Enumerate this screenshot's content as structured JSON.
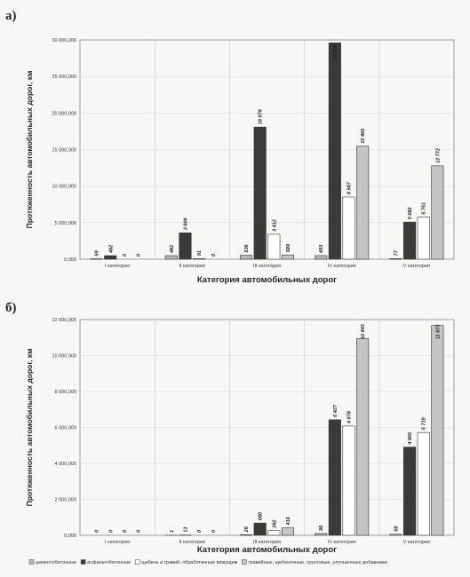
{
  "legend": [
    {
      "label": "цементобетонные",
      "color": "#b8b8b8"
    },
    {
      "label": "асфальтобетонные",
      "color": "#3a3a3a"
    },
    {
      "label": "щебень и гравий, обработанные вяжущим",
      "color": "#ffffff"
    },
    {
      "label": "гравийные, щебеночные, грунтовые, улучшенные добавками",
      "color": "#c4c4c4"
    }
  ],
  "chart_data": [
    {
      "type": "bar",
      "panel": "а)",
      "categories": [
        "I категория",
        "II категория",
        "III категория",
        "IV категория",
        "V категория"
      ],
      "xlabel": "Категория автомобильных дорог",
      "ylabel": "Протяженность автомобильных дорог, км",
      "ylim": [
        0,
        30000000
      ],
      "yticks": [
        "0,000",
        "5 000,000",
        "10 000,000",
        "15 000,000",
        "20 000,000",
        "25 000,000",
        "30 000,000"
      ],
      "grid": true,
      "series": [
        {
          "values": [
            59000,
            482000,
            536000,
            493000,
            77000
          ],
          "labels": [
            "59",
            "482",
            "536",
            "493",
            "77"
          ]
        },
        {
          "values": [
            482000,
            3609000,
            18079000,
            29600000,
            5082000
          ],
          "labels": [
            "482",
            "3 609",
            "18 079",
            "29 600",
            "5 082"
          ]
        },
        {
          "values": [
            0,
            91000,
            3412000,
            8507000,
            5751000
          ],
          "labels": [
            "0",
            "91",
            "3 412",
            "8 507",
            "5 751"
          ]
        },
        {
          "values": [
            0,
            0,
            589000,
            15465000,
            12772000
          ],
          "labels": [
            "0",
            "0",
            "589",
            "15 465",
            "12 772"
          ]
        }
      ]
    },
    {
      "type": "bar",
      "panel": "б)",
      "categories": [
        "I категория",
        "II категория",
        "III категория",
        "IV категория",
        "V категория"
      ],
      "xlabel": "Категория автомобильных дорог",
      "ylabel": "Протяженность автомобильных дорог, км",
      "ylim": [
        0,
        12000000
      ],
      "yticks": [
        "0,000",
        "2 000,000",
        "4 000,000",
        "6 000,000",
        "8 000,000",
        "10 000,000",
        "12 000,000"
      ],
      "grid": true,
      "series": [
        {
          "values": [
            0,
            1000,
            28000,
            98000,
            58000
          ],
          "labels": [
            "0",
            "1",
            "28",
            "98",
            "58"
          ]
        },
        {
          "values": [
            0,
            13000,
            680000,
            6427000,
            4905000
          ],
          "labels": [
            "0",
            "13",
            "680",
            "6 427",
            "4 905"
          ]
        },
        {
          "values": [
            0,
            0,
            262000,
            6078000,
            5719000
          ],
          "labels": [
            "0",
            "0",
            "262",
            "6 078",
            "5 719"
          ]
        },
        {
          "values": [
            0,
            0,
            416000,
            10943000,
            11673000
          ],
          "labels": [
            "0",
            "0",
            "416",
            "10 943",
            "11 673"
          ]
        }
      ]
    }
  ]
}
